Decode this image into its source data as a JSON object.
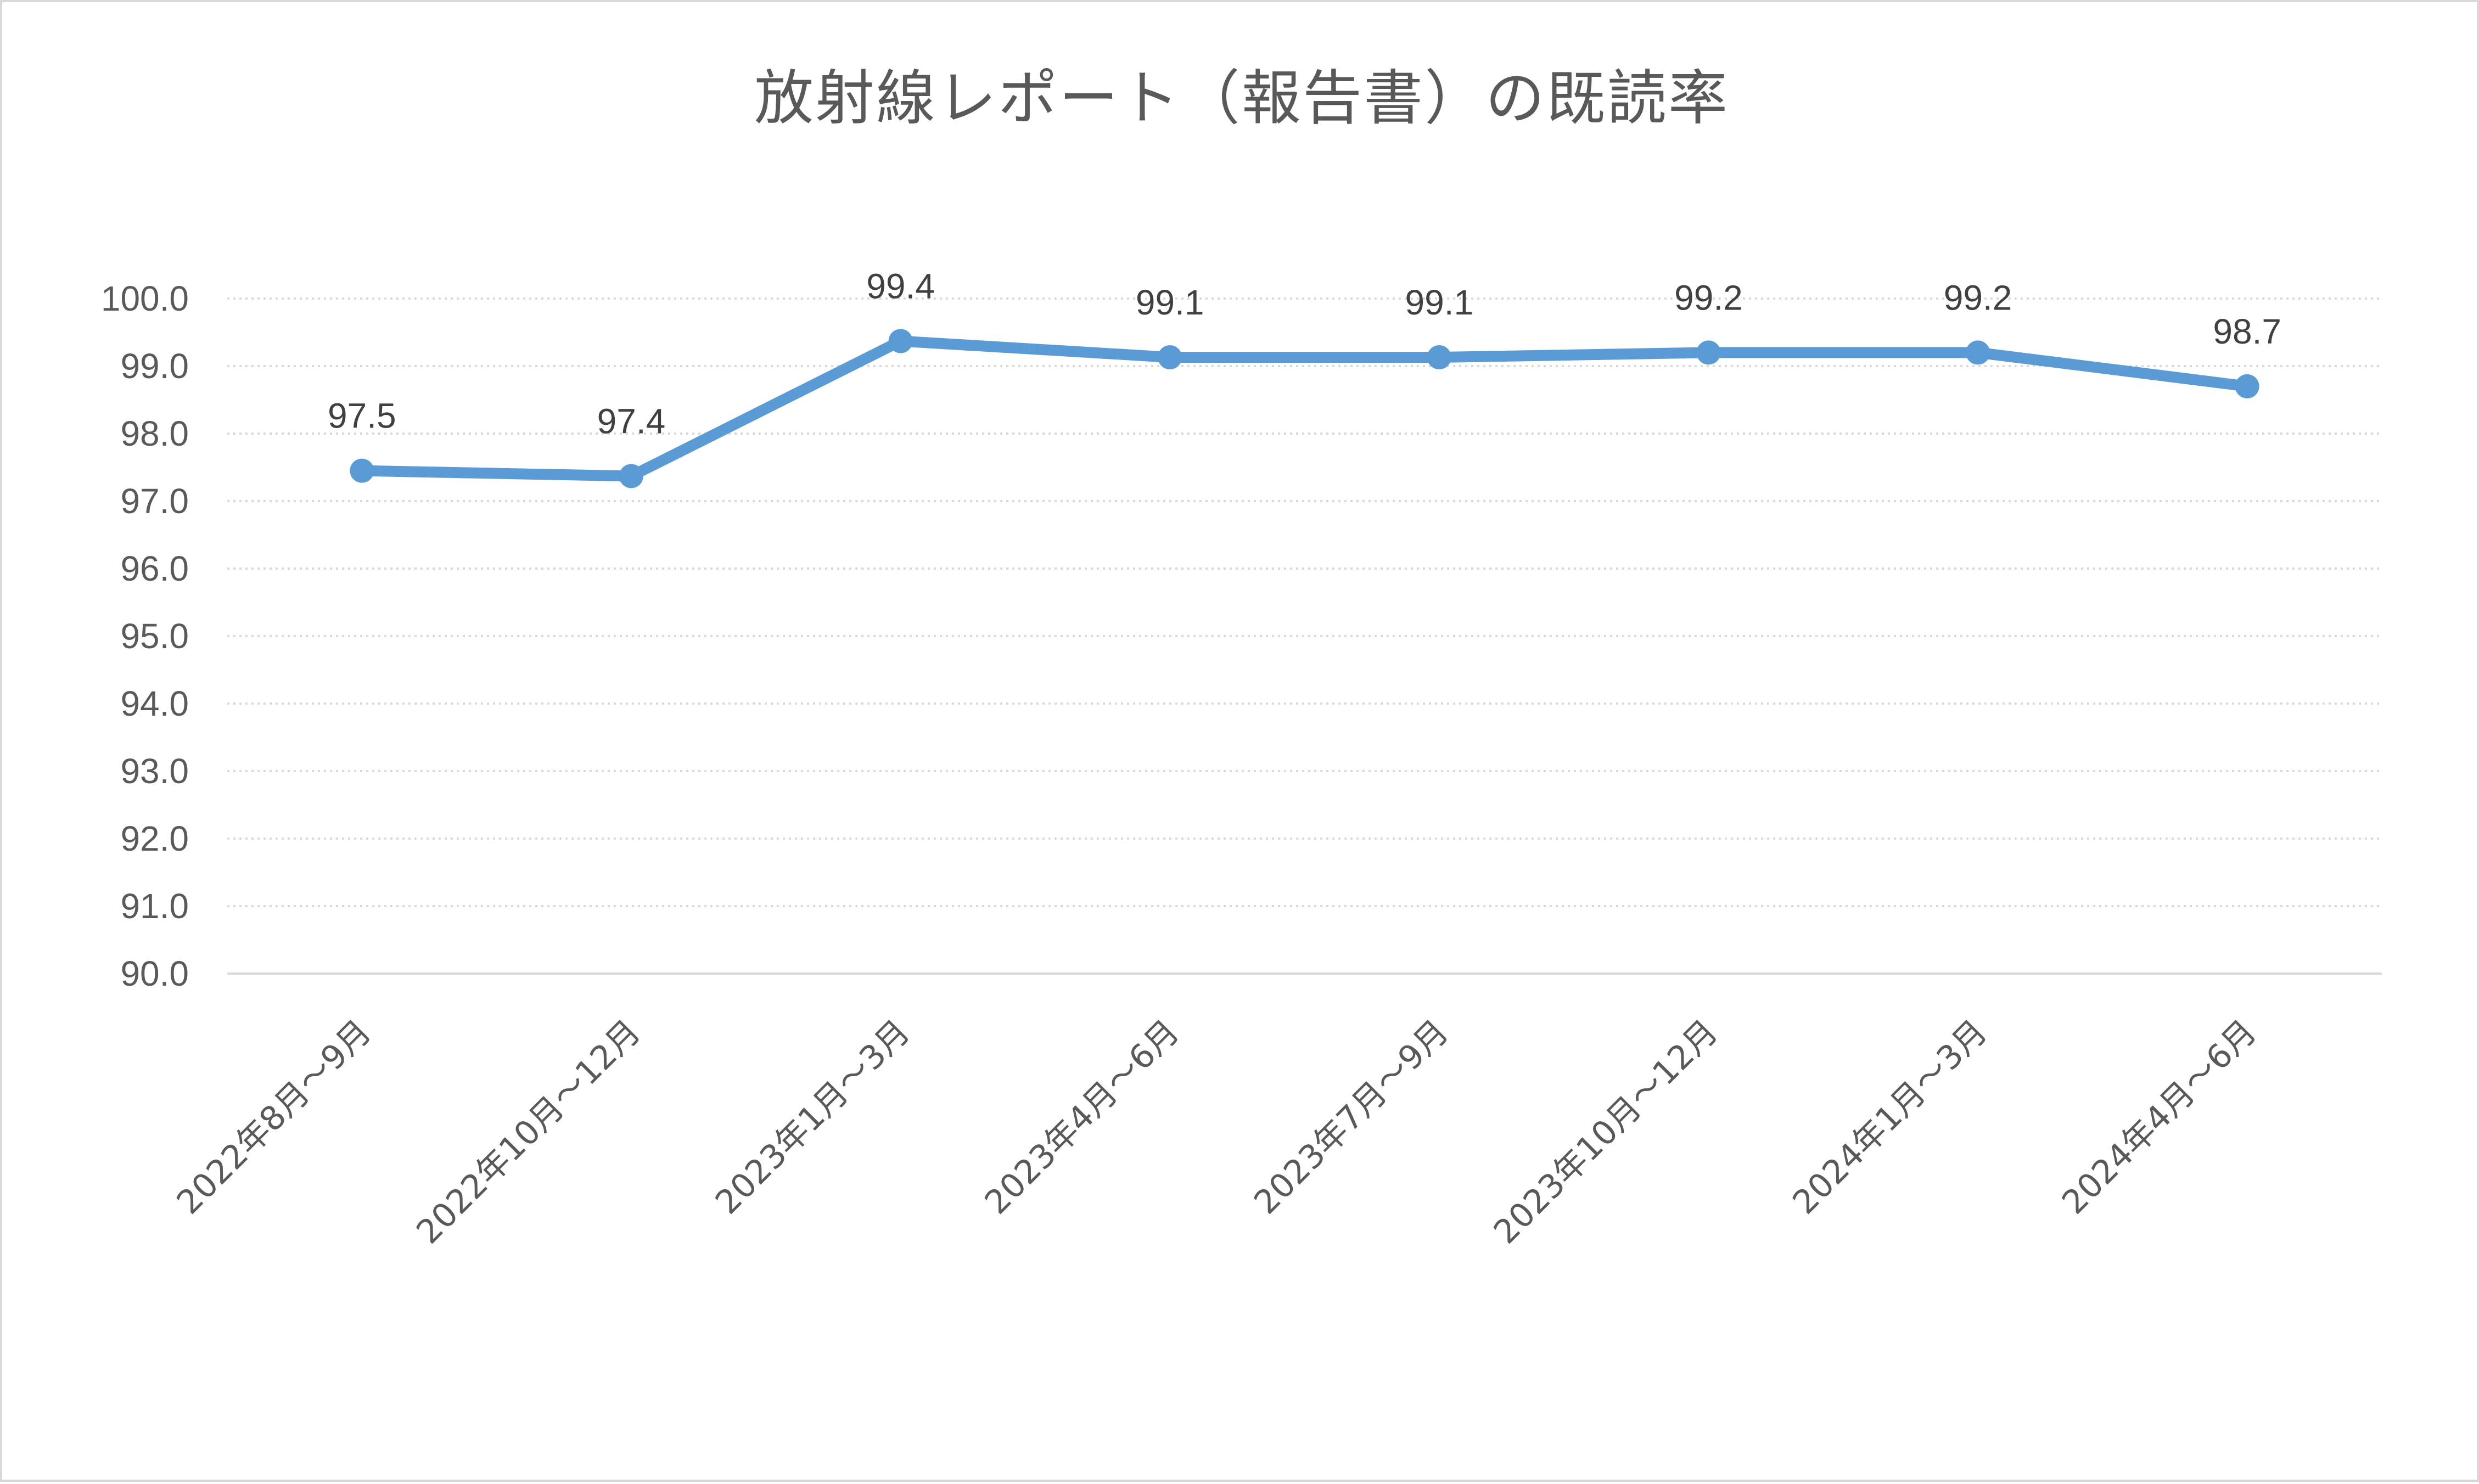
{
  "chart_data": {
    "type": "line",
    "title": "放射線レポート（報告書）の既読率",
    "categories": [
      "2022年8月～9月",
      "2022年10月～12月",
      "2023年1月～3月",
      "2023年4月～6月",
      "2023年7月～9月",
      "2023年10月～12月",
      "2024年1月～3月",
      "2024年4月～6月"
    ],
    "series": [
      {
        "values": [
          97.45,
          97.37,
          99.37,
          99.13,
          99.13,
          99.2,
          99.2,
          98.7
        ],
        "data_labels": [
          "97.5",
          "97.4",
          "99.4",
          "99.1",
          "99.1",
          "99.2",
          "99.2",
          "98.7"
        ]
      }
    ],
    "ylim": [
      90.0,
      100.0
    ],
    "yticks": [
      "90.0",
      "91.0",
      "92.0",
      "93.0",
      "94.0",
      "95.0",
      "96.0",
      "97.0",
      "98.0",
      "99.0",
      "100.0"
    ],
    "grid": true,
    "gridline_style": "dotted",
    "marker": "circle",
    "colors": {
      "series": "#5b9bd5",
      "grid": "#d9d9d9",
      "axis": "#d9d9d9",
      "text": "#595959"
    }
  }
}
